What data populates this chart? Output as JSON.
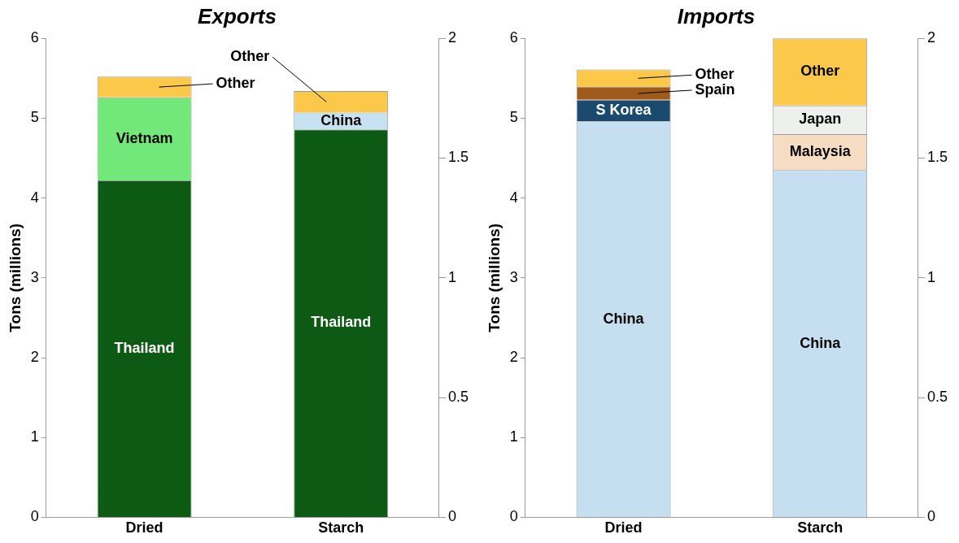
{
  "chart_data": [
    {
      "type": "bar",
      "title": "Exports",
      "categories": [
        "Dried",
        "Starch"
      ],
      "ylabel": "Tons (millions)",
      "ylim": [
        0,
        6
      ],
      "yticks": [
        0,
        1,
        2,
        3,
        4,
        5,
        6
      ],
      "y2lim": [
        0,
        2
      ],
      "y2ticks": [
        0,
        0.5,
        1,
        1.5,
        2
      ],
      "stacked": true,
      "grid": false,
      "legend": false,
      "series": [
        {
          "name": "Thailand",
          "color": "#0d5a14",
          "values": [
            4.22,
            null
          ],
          "axis": "y"
        },
        {
          "name": "Vietnam",
          "color": "#72e87a",
          "values": [
            1.04,
            null
          ],
          "axis": "y"
        },
        {
          "name": "Other",
          "color": "#fcc84a",
          "values": [
            0.26,
            null
          ],
          "axis": "y"
        },
        {
          "name": "Thailand",
          "color": "#0d5a14",
          "values": [
            null,
            1.62
          ],
          "axis": "y2"
        },
        {
          "name": "China",
          "color": "#c6e2f2",
          "values": [
            null,
            0.07
          ],
          "axis": "y2"
        },
        {
          "name": "Other",
          "color": "#fcc84a",
          "values": [
            null,
            0.09
          ],
          "axis": "y2"
        }
      ]
    },
    {
      "type": "bar",
      "title": "Imports",
      "categories": [
        "Dried",
        "Starch"
      ],
      "ylabel": "Tons (millions)",
      "ylim": [
        0,
        6
      ],
      "yticks": [
        0,
        1,
        2,
        3,
        4,
        5,
        6
      ],
      "y2lim": [
        0,
        2
      ],
      "y2ticks": [
        0,
        0.5,
        1,
        1.5,
        2
      ],
      "stacked": true,
      "grid": false,
      "legend": false,
      "series": [
        {
          "name": "China",
          "color": "#c5dff0",
          "values": [
            4.96,
            null
          ],
          "axis": "y"
        },
        {
          "name": "S Korea",
          "color": "#1a4a6e",
          "values": [
            0.27,
            null
          ],
          "axis": "y"
        },
        {
          "name": "Spain",
          "color": "#a05a1a",
          "values": [
            0.16,
            null
          ],
          "axis": "y"
        },
        {
          "name": "Other",
          "color": "#fcc84a",
          "values": [
            0.22,
            null
          ],
          "axis": "y"
        },
        {
          "name": "China",
          "color": "#c5dff0",
          "values": [
            null,
            1.45
          ],
          "axis": "y2"
        },
        {
          "name": "Malaysia",
          "color": "#f7dcc4",
          "values": [
            null,
            0.15
          ],
          "axis": "y2"
        },
        {
          "name": "Japan",
          "color": "#eef0ec",
          "values": [
            null,
            0.12
          ],
          "axis": "y2"
        },
        {
          "name": "Other",
          "color": "#fcc84a",
          "values": [
            null,
            0.28
          ],
          "axis": "y2"
        }
      ]
    }
  ]
}
